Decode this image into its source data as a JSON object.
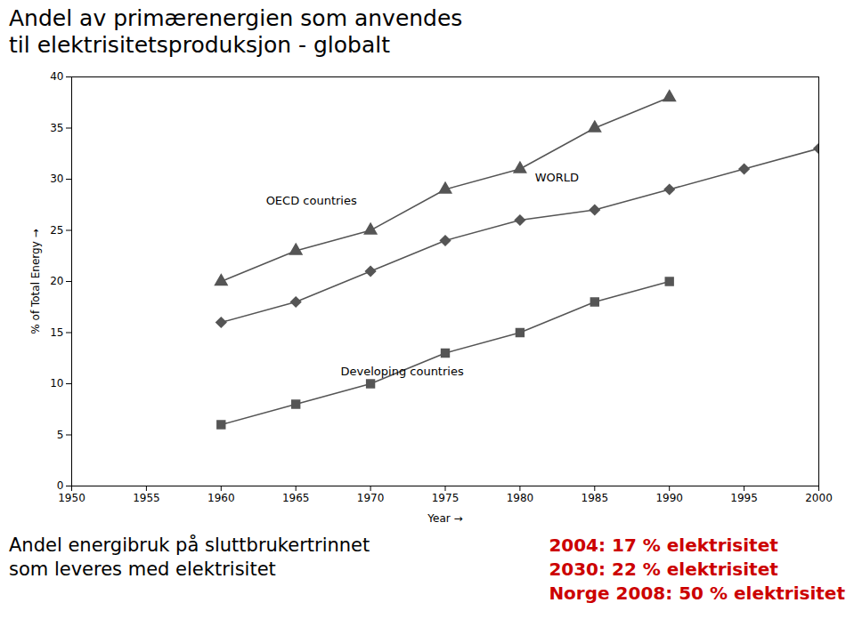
{
  "chart_data": {
    "type": "line",
    "title": [
      "Andel av primærenergien som anvendes",
      "til elektrisitetsproduksjon - globalt"
    ],
    "xlabel": "Year",
    "ylabel": "% of Total Energy",
    "xlim": [
      1950,
      2000
    ],
    "ylim": [
      0,
      40
    ],
    "xticks": [
      1950,
      1955,
      1960,
      1965,
      1970,
      1975,
      1980,
      1985,
      1990,
      1995,
      2000
    ],
    "yticks": [
      0,
      5,
      10,
      15,
      20,
      25,
      30,
      35,
      40
    ],
    "grid": false,
    "series": [
      {
        "x": [
          1960,
          1965,
          1970,
          1975,
          1980,
          1985,
          1990
        ],
        "values": [
          20,
          23,
          25,
          29,
          31,
          35,
          38
        ],
        "color": "#555555",
        "marker": "triangle"
      },
      {
        "x": [
          1960,
          1965,
          1970,
          1975,
          1980,
          1985,
          1990,
          1995,
          2000
        ],
        "values": [
          16,
          18,
          21,
          24,
          26,
          27,
          29,
          31,
          33
        ],
        "color": "#555555",
        "marker": "diamond"
      },
      {
        "x": [
          1960,
          1965,
          1970,
          1975,
          1980,
          1985,
          1990
        ],
        "values": [
          6,
          8,
          10,
          13,
          15,
          18,
          20
        ],
        "color": "#555555",
        "marker": "square"
      }
    ],
    "annotations": [
      {
        "text": "OECD countries",
        "x": 1963,
        "y": 27.5
      },
      {
        "text": "WORLD",
        "x": 1981,
        "y": 29.8
      },
      {
        "text": "Developing countries",
        "x": 1968,
        "y": 10.8
      }
    ],
    "notes": [
      {
        "lines": [
          "Andel energibruk på sluttbrukertrinnet",
          "som leveres med elektrisitet"
        ]
      },
      {
        "lines": [
          "2004:   17 % elektrisitet",
          "2030:   22 % elektrisitet",
          "Norge 2008: 50 % elektrisitet"
        ],
        "color": "#cc0000"
      }
    ]
  }
}
